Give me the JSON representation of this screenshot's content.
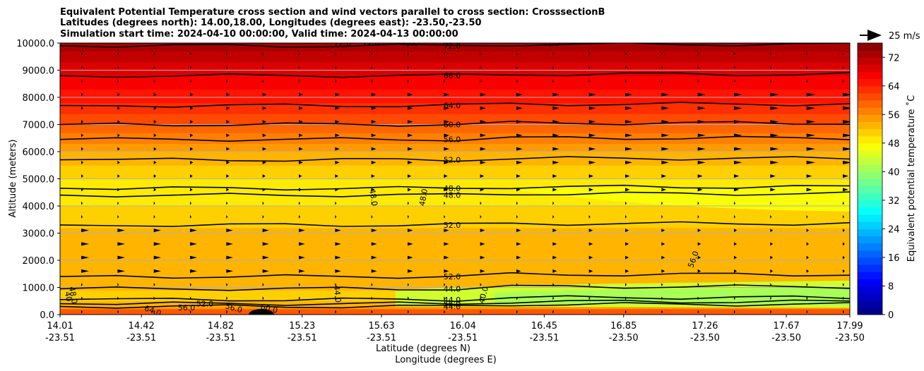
{
  "chart_data": {
    "type": "contour",
    "title_lines": [
      "Equivalent Potential Temperature cross section and wind vectors parallel to cross section: CrosssectionB",
      "Latitudes (degrees north): 14.00,18.00, Longitudes (degrees east): -23.50,-23.50",
      "Simulation start time: 2024-04-10 00:00:00, Valid time: 2024-04-13 00:00:00"
    ],
    "xlabel_lines": [
      "Latitude (degrees N)",
      "Longitude (degrees E)"
    ],
    "ylabel": "Altitude (meters)",
    "ylim": [
      0,
      10000
    ],
    "yticks": [
      "0.0",
      "1000.0",
      "2000.0",
      "3000.0",
      "4000.0",
      "5000.0",
      "6000.0",
      "7000.0",
      "8000.0",
      "9000.0",
      "10000.0"
    ],
    "xticks": [
      {
        "lat": "14.01",
        "lon": "-23.51"
      },
      {
        "lat": "14.42",
        "lon": "-23.51"
      },
      {
        "lat": "14.82",
        "lon": "-23.51"
      },
      {
        "lat": "15.23",
        "lon": "-23.51"
      },
      {
        "lat": "15.63",
        "lon": "-23.51"
      },
      {
        "lat": "16.04",
        "lon": "-23.51"
      },
      {
        "lat": "16.45",
        "lon": "-23.51"
      },
      {
        "lat": "16.85",
        "lon": "-23.50"
      },
      {
        "lat": "17.26",
        "lon": "-23.50"
      },
      {
        "lat": "17.67",
        "lon": "-23.50"
      },
      {
        "lat": "17.99",
        "lon": "-23.50"
      }
    ],
    "colorbar": {
      "label": "Equivalent potential temperature ˚C",
      "range": [
        0,
        76
      ],
      "step": 2,
      "ticks": [
        "0",
        "8",
        "16",
        "24",
        "32",
        "40",
        "48",
        "56",
        "64",
        "72"
      ]
    },
    "quiver_key": {
      "label": "25 m/s"
    },
    "contour_lines": [
      {
        "label": "44.0",
        "alt": 300
      },
      {
        "label": "56.0",
        "alt": 400
      },
      {
        "label": "44.0",
        "alt": 550
      },
      {
        "label": "44.0",
        "alt": 950
      },
      {
        "label": "52.0",
        "alt": 1400
      },
      {
        "label": "52.0",
        "alt": 3300
      },
      {
        "label": "48.0",
        "alt": 4400
      },
      {
        "label": "48.0",
        "alt": 4650
      },
      {
        "label": "52.0",
        "alt": 5700
      },
      {
        "label": "56.0",
        "alt": 6450
      },
      {
        "label": "60.0",
        "alt": 7000
      },
      {
        "label": "64.0",
        "alt": 7700
      },
      {
        "label": "68.0",
        "alt": 8800
      },
      {
        "label": "72.0",
        "alt": 9900
      }
    ],
    "extra_labels": [
      "48.0",
      "48.0",
      "56.0",
      "44.0",
      "40.0",
      "64.0",
      "56.0",
      "52.0",
      "56.0",
      "60.0",
      "48.0",
      "40",
      "72.0",
      "72.0",
      "72.0",
      "72.0"
    ]
  }
}
